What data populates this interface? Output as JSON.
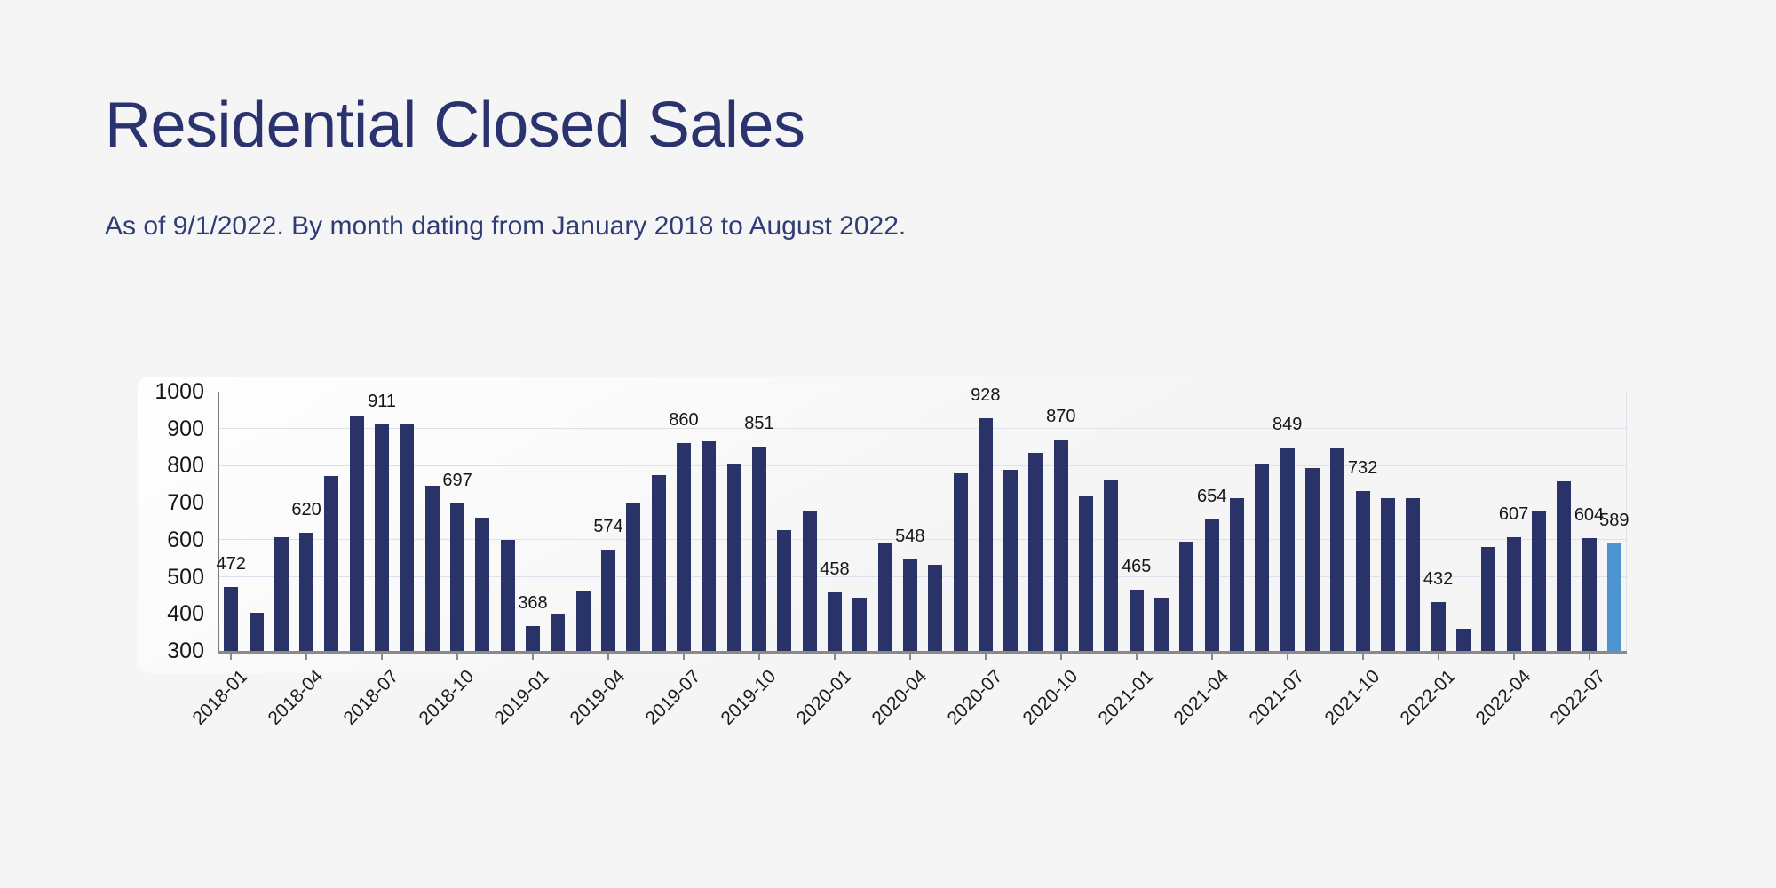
{
  "header": {
    "title": "Residential Closed Sales",
    "subtitle": "As of 9/1/2022. By month dating from January 2018 to August 2022."
  },
  "colors": {
    "background": "#f5f5f6",
    "title_text": "#2b336e",
    "bar": "#2a3367",
    "highlight_bar": "#4e94d1",
    "gridline": "#dde1ee",
    "axis_line": "#8a8a8c",
    "tick_text": "#1c1c1c"
  },
  "chart_data": {
    "type": "bar",
    "title": "Residential Closed Sales",
    "subtitle": "As of 9/1/2022. By month dating from January 2018 to August 2022.",
    "xlabel": "",
    "ylabel": "",
    "ylim": [
      300,
      1000
    ],
    "yticks": [
      300,
      400,
      500,
      600,
      700,
      800,
      900,
      1000
    ],
    "xticks": [
      "2018-01",
      "2018-04",
      "2018-07",
      "2018-10",
      "2019-01",
      "2019-04",
      "2019-07",
      "2019-10",
      "2020-01",
      "2020-04",
      "2020-07",
      "2020-10",
      "2021-01",
      "2021-04",
      "2021-07",
      "2021-10",
      "2022-01",
      "2022-04",
      "2022-07"
    ],
    "grid": true,
    "legend": false,
    "bar_color": "#2a3367",
    "highlight_color": "#4e94d1",
    "highlight_month": "2022-08",
    "points": [
      {
        "month": "2018-01",
        "value": 472,
        "label": "472"
      },
      {
        "month": "2018-02",
        "value": 403
      },
      {
        "month": "2018-03",
        "value": 608
      },
      {
        "month": "2018-04",
        "value": 620,
        "label": "620"
      },
      {
        "month": "2018-05",
        "value": 773
      },
      {
        "month": "2018-06",
        "value": 935
      },
      {
        "month": "2018-07",
        "value": 911,
        "label": "911"
      },
      {
        "month": "2018-08",
        "value": 914
      },
      {
        "month": "2018-09",
        "value": 745
      },
      {
        "month": "2018-10",
        "value": 697,
        "label": "697"
      },
      {
        "month": "2018-11",
        "value": 660
      },
      {
        "month": "2018-12",
        "value": 599
      },
      {
        "month": "2019-01",
        "value": 368,
        "label": "368"
      },
      {
        "month": "2019-02",
        "value": 400
      },
      {
        "month": "2019-03",
        "value": 462
      },
      {
        "month": "2019-04",
        "value": 574,
        "label": "574"
      },
      {
        "month": "2019-05",
        "value": 698
      },
      {
        "month": "2019-06",
        "value": 775
      },
      {
        "month": "2019-07",
        "value": 860,
        "label": "860"
      },
      {
        "month": "2019-08",
        "value": 866
      },
      {
        "month": "2019-09",
        "value": 806
      },
      {
        "month": "2019-10",
        "value": 851,
        "label": "851"
      },
      {
        "month": "2019-11",
        "value": 627
      },
      {
        "month": "2019-12",
        "value": 676
      },
      {
        "month": "2020-01",
        "value": 458,
        "label": "458"
      },
      {
        "month": "2020-02",
        "value": 445
      },
      {
        "month": "2020-03",
        "value": 591
      },
      {
        "month": "2020-04",
        "value": 548,
        "label": "548"
      },
      {
        "month": "2020-05",
        "value": 533
      },
      {
        "month": "2020-06",
        "value": 780
      },
      {
        "month": "2020-07",
        "value": 928,
        "label": "928"
      },
      {
        "month": "2020-08",
        "value": 790
      },
      {
        "month": "2020-09",
        "value": 835
      },
      {
        "month": "2020-10",
        "value": 870,
        "label": "870"
      },
      {
        "month": "2020-11",
        "value": 720
      },
      {
        "month": "2020-12",
        "value": 760
      },
      {
        "month": "2021-01",
        "value": 465,
        "label": "465"
      },
      {
        "month": "2021-02",
        "value": 445
      },
      {
        "month": "2021-03",
        "value": 595
      },
      {
        "month": "2021-04",
        "value": 654,
        "label": "654"
      },
      {
        "month": "2021-05",
        "value": 712
      },
      {
        "month": "2021-06",
        "value": 805
      },
      {
        "month": "2021-07",
        "value": 849,
        "label": "849"
      },
      {
        "month": "2021-08",
        "value": 793
      },
      {
        "month": "2021-09",
        "value": 849
      },
      {
        "month": "2021-10",
        "value": 732,
        "label": "732"
      },
      {
        "month": "2021-11",
        "value": 713
      },
      {
        "month": "2021-12",
        "value": 713
      },
      {
        "month": "2022-01",
        "value": 432,
        "label": "432"
      },
      {
        "month": "2022-02",
        "value": 359
      },
      {
        "month": "2022-03",
        "value": 581
      },
      {
        "month": "2022-04",
        "value": 607,
        "label": "607"
      },
      {
        "month": "2022-05",
        "value": 676
      },
      {
        "month": "2022-06",
        "value": 757
      },
      {
        "month": "2022-07",
        "value": 604,
        "label": "604"
      },
      {
        "month": "2022-08",
        "value": 589,
        "label": "589"
      }
    ]
  }
}
